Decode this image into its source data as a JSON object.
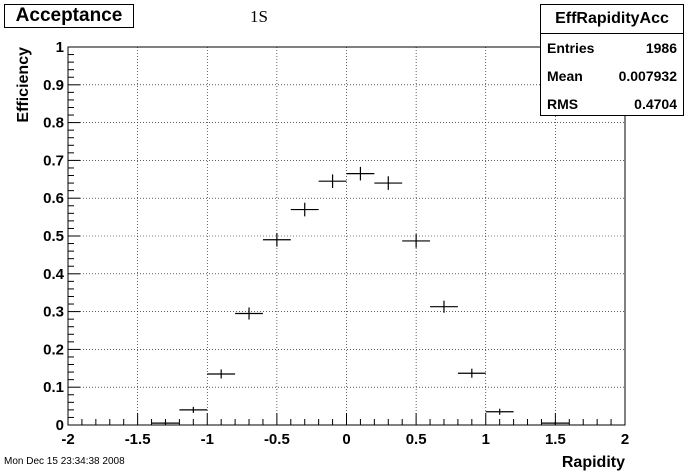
{
  "title": "Acceptance",
  "subtitle": "1S",
  "stats": {
    "name": "EffRapidityAcc",
    "rows": [
      {
        "label": "Entries",
        "value": "1986"
      },
      {
        "label": "Mean",
        "value": "0.007932"
      },
      {
        "label": "RMS",
        "value": "0.4704"
      }
    ]
  },
  "timestamp": "Mon Dec 15 23:34:38 2008",
  "chart_data": {
    "type": "scatter",
    "title": "Acceptance",
    "subtitle": "1S",
    "xlabel": "Rapidity",
    "ylabel": "Efficiency",
    "xlim": [
      -2,
      2
    ],
    "ylim": [
      0,
      1
    ],
    "xticks": [
      "-2",
      "-1.5",
      "-1",
      "-0.5",
      "0",
      "0.5",
      "1",
      "1.5",
      "2"
    ],
    "yticks": [
      "0",
      "0.1",
      "0.2",
      "0.3",
      "0.4",
      "0.5",
      "0.6",
      "0.7",
      "0.8",
      "0.9",
      "1"
    ],
    "grid": true,
    "bin_width": 0.2,
    "points": [
      {
        "x": -1.3,
        "y": 0.005,
        "yerr": 0.004
      },
      {
        "x": -1.1,
        "y": 0.04,
        "yerr": 0.008
      },
      {
        "x": -0.9,
        "y": 0.135,
        "yerr": 0.012
      },
      {
        "x": -0.7,
        "y": 0.295,
        "yerr": 0.016
      },
      {
        "x": -0.5,
        "y": 0.49,
        "yerr": 0.018
      },
      {
        "x": -0.3,
        "y": 0.57,
        "yerr": 0.018
      },
      {
        "x": -0.1,
        "y": 0.645,
        "yerr": 0.018
      },
      {
        "x": 0.1,
        "y": 0.665,
        "yerr": 0.018
      },
      {
        "x": 0.3,
        "y": 0.64,
        "yerr": 0.018
      },
      {
        "x": 0.5,
        "y": 0.487,
        "yerr": 0.018
      },
      {
        "x": 0.7,
        "y": 0.313,
        "yerr": 0.016
      },
      {
        "x": 0.9,
        "y": 0.137,
        "yerr": 0.012
      },
      {
        "x": 1.1,
        "y": 0.035,
        "yerr": 0.008
      },
      {
        "x": 1.5,
        "y": 0.005,
        "yerr": 0.004
      }
    ]
  }
}
